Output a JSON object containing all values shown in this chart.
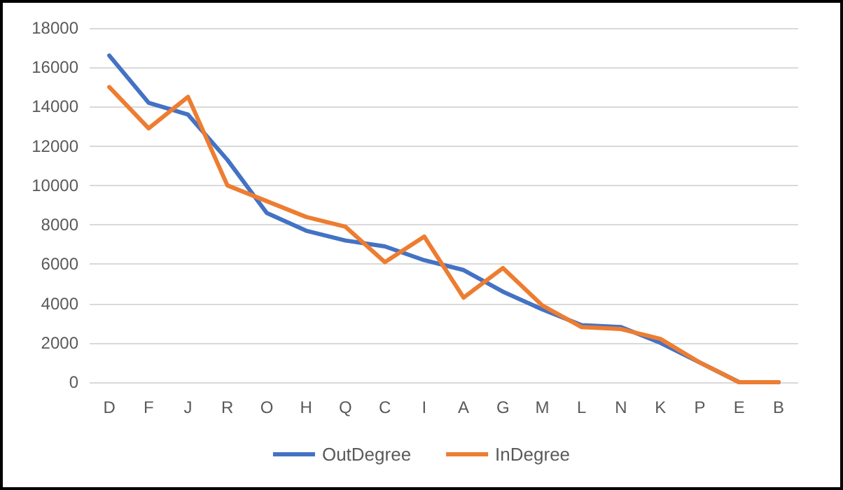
{
  "chart_data": {
    "type": "line",
    "categories": [
      "D",
      "F",
      "J",
      "R",
      "O",
      "H",
      "Q",
      "C",
      "I",
      "A",
      "G",
      "M",
      "L",
      "N",
      "K",
      "P",
      "E",
      "B"
    ],
    "series": [
      {
        "name": "OutDegree",
        "color": "#4472c4",
        "values": [
          16600,
          14200,
          13600,
          11300,
          8600,
          7700,
          7200,
          6900,
          6200,
          5700,
          4600,
          3700,
          2900,
          2800,
          2000,
          1000,
          0,
          0
        ]
      },
      {
        "name": "InDegree",
        "color": "#ed7d31",
        "values": [
          15000,
          12900,
          14500,
          10000,
          9200,
          8400,
          7900,
          6100,
          7400,
          4300,
          5800,
          3900,
          2800,
          2700,
          2200,
          1000,
          0,
          0
        ]
      }
    ],
    "ylim": [
      0,
      18000
    ],
    "yticks": [
      0,
      2000,
      4000,
      6000,
      8000,
      10000,
      12000,
      14000,
      16000,
      18000
    ],
    "grid": "y",
    "legend": "bottom",
    "marker": "none",
    "line_style": "solid"
  }
}
